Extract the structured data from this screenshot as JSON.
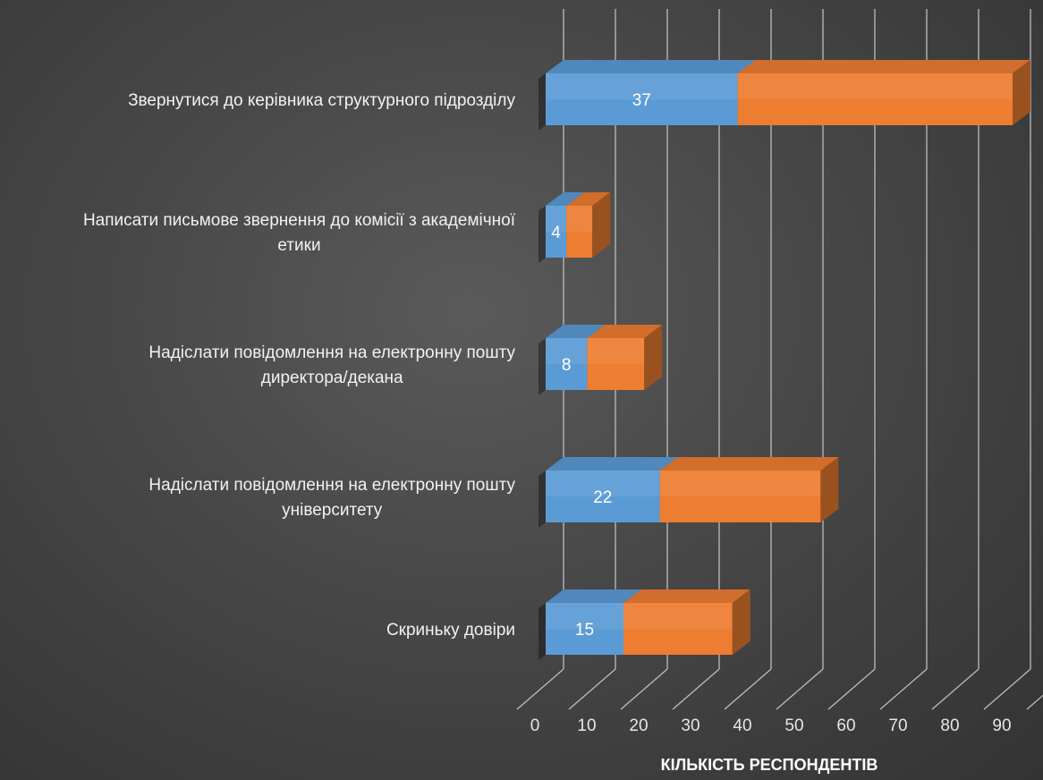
{
  "chart_data": {
    "type": "bar",
    "orientation": "horizontal",
    "stacked": true,
    "style": "3d",
    "categories": [
      "Звернутися до керівника структурного підрозділу",
      "Написати письмове звернення до комісії з академічної етики",
      "Надіслати повідомлення на електронну пошту директора/декана",
      "Надіслати повідомлення на електронну пошту університету",
      "Скриньку довіри"
    ],
    "category_lines": [
      [
        "Звернутися до керівника структурного підрозділу"
      ],
      [
        "Написати письмове звернення до комісії з академічної",
        "етики"
      ],
      [
        "Надіслати повідомлення на електронну пошту",
        "директора/декана"
      ],
      [
        "Надіслати повідомлення на електронну пошту",
        "університету"
      ],
      [
        "Скриньку довіри"
      ]
    ],
    "series": [
      {
        "values": [
          37,
          4,
          8,
          22,
          15
        ],
        "color": "#5b9bd5",
        "show_labels": true
      },
      {
        "values": [
          53,
          5,
          11,
          31,
          21
        ],
        "color": "#ed7d31",
        "show_labels": false
      }
    ],
    "xlabel": "КІЛЬКІСТЬ РЕСПОНДЕНТІВ",
    "xlim": [
      0,
      90
    ],
    "x_ticks": [
      0,
      10,
      20,
      30,
      40,
      50,
      60,
      70,
      80,
      90
    ],
    "grid": true,
    "legend": "none",
    "colors": {
      "background": "#444444",
      "gridline": "#bdbdbd",
      "text": "#f2f2f2"
    }
  }
}
